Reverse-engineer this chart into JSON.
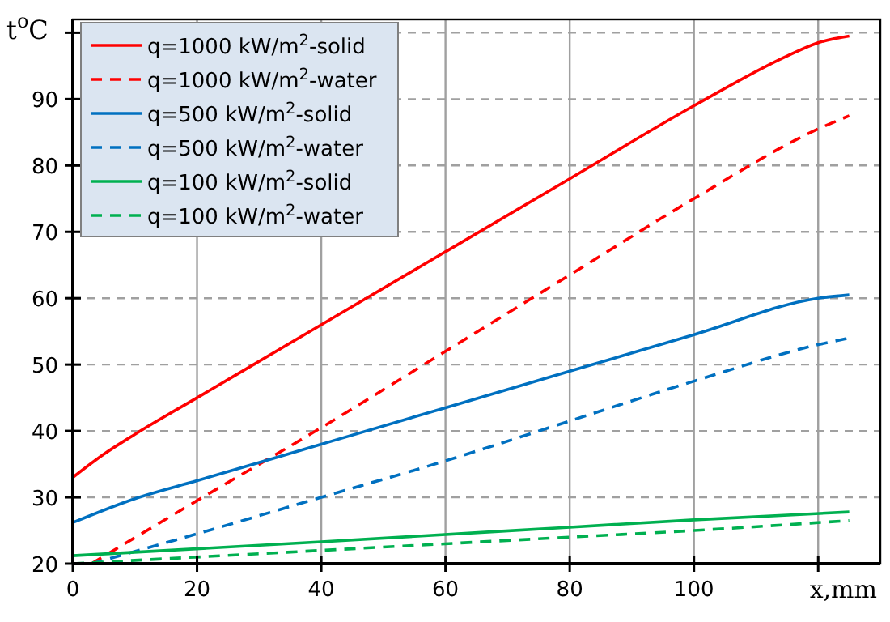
{
  "chart_data": {
    "type": "line",
    "xlabel": "x,mm",
    "ylabel": "t$^{o}$C",
    "xlim": [
      0,
      130
    ],
    "ylim": [
      20,
      102
    ],
    "xticks": [
      0,
      20,
      40,
      60,
      80,
      100,
      {
        "value": 120,
        "label": null
      }
    ],
    "yticks": [
      20,
      30,
      40,
      50,
      60,
      70,
      80,
      90,
      {
        "value": 100,
        "label": null
      }
    ],
    "grid": true,
    "legend": "top left",
    "marker": "none",
    "series": [
      {
        "name": "q=1000 kW/m$^{2}$-solid",
        "color": "#ff0000",
        "line_style": "solid",
        "x": [
          0,
          5,
          10,
          20,
          40,
          60,
          80,
          100,
          115,
          120,
          125
        ],
        "values": [
          33,
          36.5,
          39.5,
          45,
          56,
          67,
          78,
          89,
          96.5,
          98.5,
          99.5
        ]
      },
      {
        "name": "q=1000 kW/m$^{2}$-water",
        "color": "#ff0000",
        "line_style": "dashed",
        "x": [
          3,
          20,
          40,
          60,
          80,
          100,
          120,
          125
        ],
        "values": [
          20,
          29.5,
          40.5,
          52,
          63.5,
          75,
          85.5,
          87.5
        ]
      },
      {
        "name": "q=500 kW/m$^{2}$-solid",
        "color": "#0070c0",
        "line_style": "solid",
        "x": [
          0,
          10,
          20,
          40,
          60,
          80,
          100,
          120,
          125
        ],
        "values": [
          26.2,
          29.8,
          32.5,
          38,
          43.5,
          49,
          54.5,
          60,
          60.5
        ]
      },
      {
        "name": "q=500 kW/m$^{2}$-water",
        "color": "#0070c0",
        "line_style": "dashed",
        "x": [
          3,
          20,
          40,
          60,
          80,
          100,
          120,
          125
        ],
        "values": [
          20,
          24.5,
          30,
          35.5,
          41.5,
          47.5,
          53,
          54
        ]
      },
      {
        "name": "q=100 kW/m$^{2}$-solid",
        "color": "#00b050",
        "line_style": "solid",
        "x": [
          0,
          40,
          80,
          100,
          125
        ],
        "values": [
          21.2,
          23.3,
          25.5,
          26.6,
          27.8
        ]
      },
      {
        "name": "q=100 kW/m$^{2}$-water",
        "color": "#00b050",
        "line_style": "dashed",
        "x": [
          0,
          40,
          80,
          100,
          125
        ],
        "values": [
          20,
          22,
          24,
          25,
          26.5
        ]
      }
    ]
  }
}
